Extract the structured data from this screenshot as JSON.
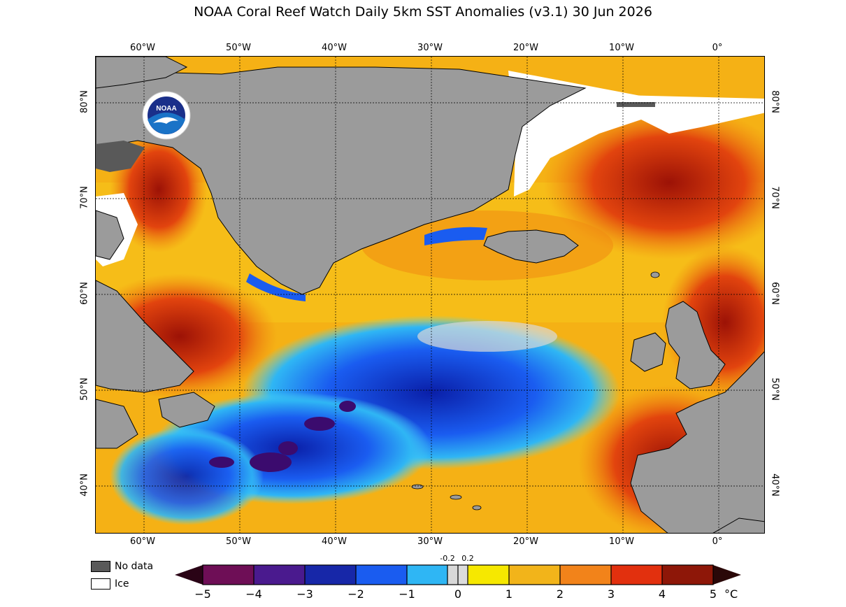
{
  "title": "NOAA Coral Reef Watch Daily 5km SST Anomalies  (v3.1)   30 Jun 2026",
  "logo_text": "NOAA",
  "lon_labels": [
    "60°W",
    "50°W",
    "40°W",
    "30°W",
    "20°W",
    "10°W",
    "0°"
  ],
  "lat_labels": [
    "80°N",
    "70°N",
    "60°N",
    "50°N",
    "40°N"
  ],
  "legend": {
    "no_data": "No data",
    "ice": "Ice"
  },
  "colorbar": {
    "ticks": [
      "−5",
      "−4",
      "−3",
      "−2",
      "−1",
      "0",
      "1",
      "2",
      "3",
      "4",
      "5"
    ],
    "small_ticks": [
      "-0.2",
      "0.2"
    ],
    "unit": "°C"
  },
  "colors": {
    "land": "#9b9b9b",
    "no_data": "#595959",
    "ice": "#ffffff",
    "ocean_warm": "#f6a21c",
    "ocean_hot": "#e2440e",
    "ocean_cold": "#1a4fe0",
    "ocean_very_cold": "#3b0b6e"
  }
}
